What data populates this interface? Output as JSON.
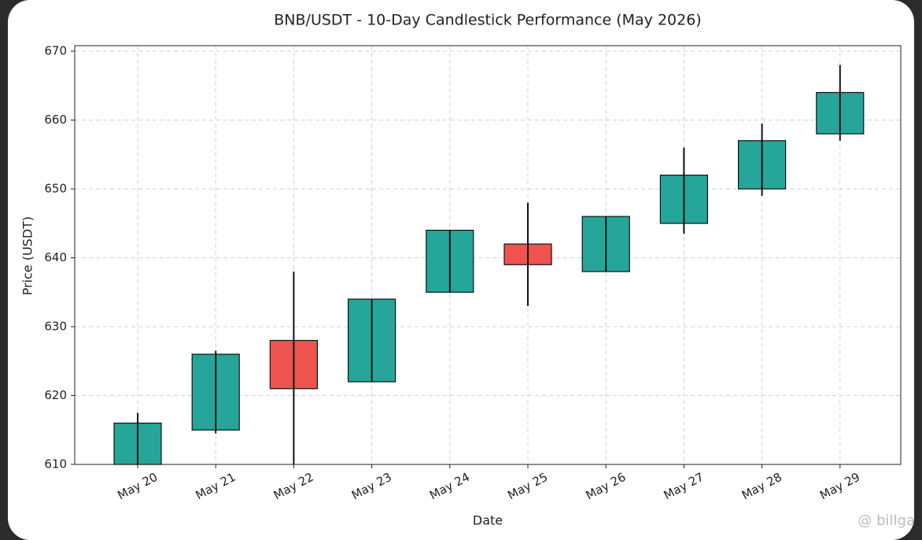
{
  "chart_data": {
    "type": "candlestick",
    "title": "BNB/USDT - 10-Day Candlestick Performance (May 2026)",
    "x_label": "Date",
    "y_label": "Price (USDT)",
    "categories": [
      "May 20",
      "May 21",
      "May 22",
      "May 23",
      "May 24",
      "May 25",
      "May 26",
      "May 27",
      "May 28",
      "May 29"
    ],
    "open": [
      610,
      615,
      628,
      622,
      635,
      642,
      638,
      645,
      650,
      658
    ],
    "high": [
      617.5,
      626.5,
      638,
      634,
      644,
      648,
      646,
      656,
      659.5,
      668
    ],
    "low": [
      610,
      614.5,
      610,
      622,
      635,
      633,
      638,
      643.5,
      649,
      657
    ],
    "close": [
      616,
      626,
      621,
      634,
      644,
      639,
      646,
      652,
      657,
      664
    ],
    "up_color": "#26a69a",
    "down_color": "#ef5350",
    "ylim": [
      610,
      670.8
    ],
    "yticks": [
      610,
      620,
      630,
      640,
      650,
      660,
      670
    ],
    "grid": true
  },
  "watermark": "@ billga"
}
